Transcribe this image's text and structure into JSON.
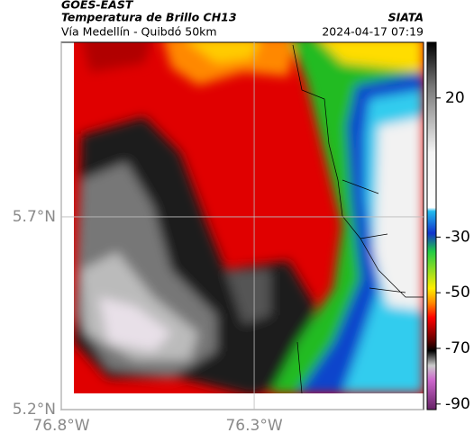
{
  "header": {
    "title": "GOES-EAST",
    "subtitle": "Temperatura de Brillo CH13",
    "source": "SIATA",
    "route": "Vía Medellín - Quibdó 50km",
    "datetime": "2024-04-17 07:19"
  },
  "map": {
    "xlim": [
      -76.8,
      -75.861
    ],
    "ylim": [
      5.2,
      6.153
    ],
    "xticks": [
      {
        "value": -76.8,
        "label": "76.8°W"
      },
      {
        "value": -76.3,
        "label": "76.3°W"
      }
    ],
    "yticks": [
      {
        "value": 5.2,
        "label": "5.2°N"
      },
      {
        "value": 5.7,
        "label": "5.7°N"
      }
    ],
    "grid": true
  },
  "colorbar": {
    "clim": [
      40,
      -92
    ],
    "ticks": [
      20,
      -30,
      -50,
      -70,
      -90
    ]
  }
}
